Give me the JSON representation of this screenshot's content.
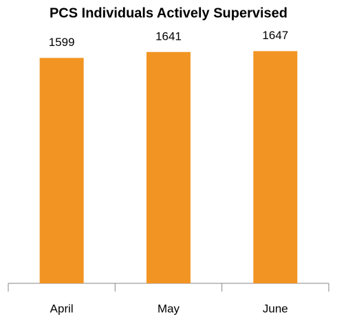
{
  "chart_data": {
    "type": "bar",
    "title": "PCS Individuals Actively Supervised",
    "categories": [
      "April",
      "May",
      "June"
    ],
    "values": [
      1599,
      1641,
      1647
    ],
    "color": "#f29423",
    "ylim": [
      0,
      2000
    ],
    "grid": false,
    "data_labels": true
  }
}
